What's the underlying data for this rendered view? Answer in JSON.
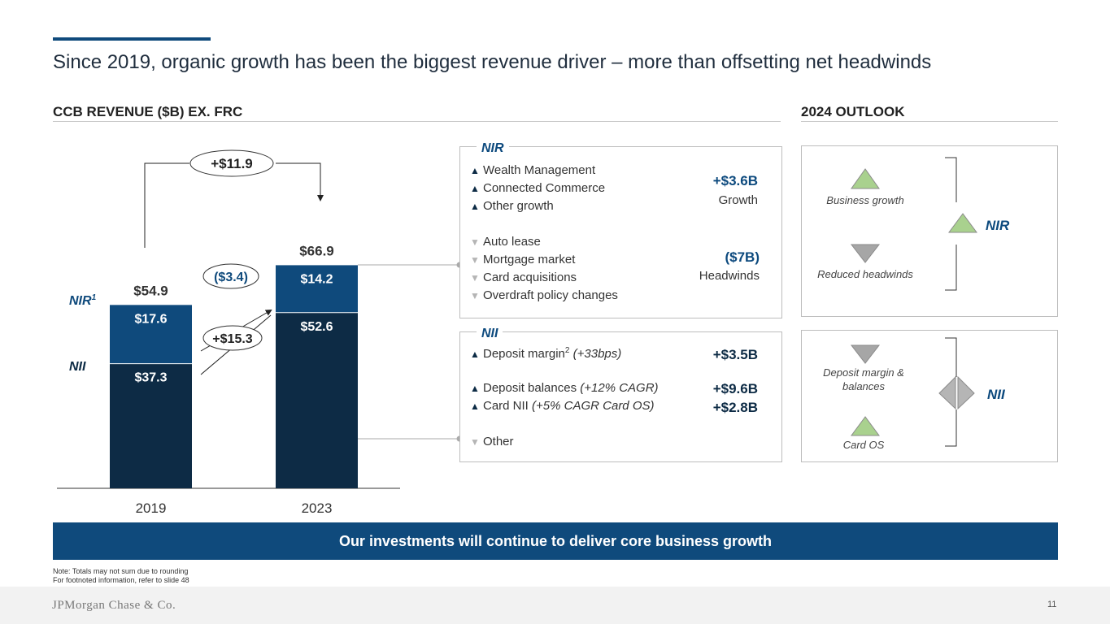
{
  "title": "Since 2019, organic growth has been the biggest revenue driver – more than offsetting net headwinds",
  "left_header": "CCB REVENUE ($B) EX. FRC",
  "right_header": "2024 OUTLOOK",
  "chart_data": {
    "type": "bar",
    "stacked": true,
    "categories": [
      "2019",
      "2023"
    ],
    "series": [
      {
        "name": "NII",
        "values": [
          37.3,
          52.6
        ],
        "labels": [
          "$37.3",
          "$52.6"
        ],
        "color": "#0d2b45"
      },
      {
        "name": "NIR",
        "values": [
          17.6,
          14.2
        ],
        "labels": [
          "$17.6",
          "$14.2"
        ],
        "color": "#0f4a7c"
      }
    ],
    "totals": [
      "$54.9",
      "$66.9"
    ],
    "total_change": "+$11.9",
    "nir_change": "($3.4)",
    "nii_change": "+$15.3",
    "series_labels": {
      "nir": "NIR",
      "nir_sup": "1",
      "nii": "NII"
    },
    "ylim": [
      0,
      70
    ]
  },
  "nir_box": {
    "title": "NIR",
    "growth_items": [
      "Wealth Management",
      "Connected Commerce",
      "Other growth"
    ],
    "growth_value": "+$3.6B",
    "growth_label": "Growth",
    "headwind_items": [
      "Auto lease",
      "Mortgage market",
      "Card acquisitions",
      "Overdraft policy changes"
    ],
    "headwind_value": "($7B)",
    "headwind_label": "Headwinds"
  },
  "nii_box": {
    "title": "NII",
    "item1_text": "Deposit margin",
    "item1_sup": "2",
    "item1_italic": "(+33bps)",
    "item1_value": "+$3.5B",
    "item2_text": "Deposit balances",
    "item2_italic": "(+12% CAGR)",
    "item2_value": "+$9.6B",
    "item3_text": "Card NII",
    "item3_italic": "(+5% CAGR Card OS)",
    "item3_value": "+$2.8B",
    "item4_text": "Other"
  },
  "outlook_nir": {
    "up_label": "Business growth",
    "down_label": "Reduced headwinds",
    "result": "NIR"
  },
  "outlook_nii": {
    "down_label": "Deposit margin & balances",
    "up_label": "Card OS",
    "result": "NII"
  },
  "banner": "Our investments will continue to deliver core business growth",
  "note1": "Note: Totals may not sum due to rounding",
  "note2": "For footnoted information, refer to slide 48",
  "logo": "JPMorgan Chase & Co.",
  "page_number": "11",
  "colors": {
    "navy": "#0d2b45",
    "blue": "#0f4a7c",
    "green": "#a9d18e",
    "gray": "#a6a6a6"
  }
}
